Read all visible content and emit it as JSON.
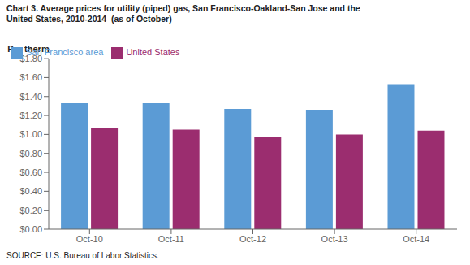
{
  "chart_data": {
    "type": "bar",
    "title": "Chart 3. Average prices for utility (piped) gas, San Francisco-Oakland-San Jose and the",
    "subtitle": "United States, 2010-2014  (as of October)",
    "y_label": "Per therm",
    "annotations": [
      "SOURCE: U.S. Bureau of Labor Statistics."
    ],
    "categories": [
      "Oct-10",
      "Oct-11",
      "Oct-12",
      "Oct-13",
      "Oct-14"
    ],
    "series": [
      {
        "name": "San Francisco area",
        "color": "#5B9BD5",
        "values": [
          1.33,
          1.33,
          1.27,
          1.26,
          1.53
        ]
      },
      {
        "name": "United States",
        "color": "#9B2D6F",
        "values": [
          1.07,
          1.05,
          0.97,
          1.0,
          1.04
        ]
      }
    ],
    "ylim": [
      0.0,
      1.8
    ],
    "yticks": [
      {
        "value": 0.0,
        "label": "$0.00"
      },
      {
        "value": 0.2,
        "label": "$0.20"
      },
      {
        "value": 0.4,
        "label": "$0.40"
      },
      {
        "value": 0.6,
        "label": "$0.60"
      },
      {
        "value": 0.8,
        "label": "$0.80"
      },
      {
        "value": 1.0,
        "label": "$1.00"
      },
      {
        "value": 1.2,
        "label": "$1.20"
      },
      {
        "value": 1.4,
        "label": "$1.40"
      },
      {
        "value": 1.6,
        "label": "$1.60"
      },
      {
        "value": 1.8,
        "label": "$1.80"
      }
    ],
    "legend": "upper left",
    "grid": false
  }
}
